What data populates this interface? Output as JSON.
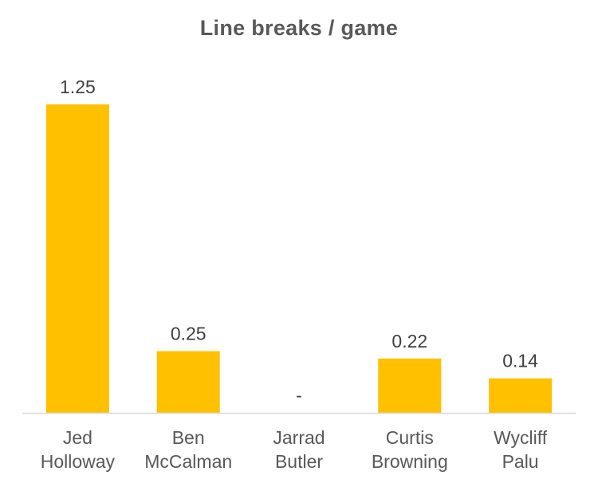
{
  "chart_data": {
    "type": "bar",
    "title": "Line breaks / game",
    "categories": [
      [
        "Jed",
        "Holloway"
      ],
      [
        "Ben",
        "McCalman"
      ],
      [
        "Jarrad",
        "Butler"
      ],
      [
        "Curtis",
        "Browning"
      ],
      [
        "Wycliff",
        "Palu"
      ]
    ],
    "values": [
      1.25,
      0.25,
      null,
      0.22,
      0.14
    ],
    "data_labels": [
      "1.25",
      "0.25",
      "-",
      "0.22",
      "0.14"
    ],
    "xlabel": "",
    "ylabel": "",
    "ylim": [
      0,
      1.4
    ],
    "grid": false,
    "legend": "none",
    "bar_color": "#FFC000",
    "axis_color": "#D9D9D9"
  }
}
